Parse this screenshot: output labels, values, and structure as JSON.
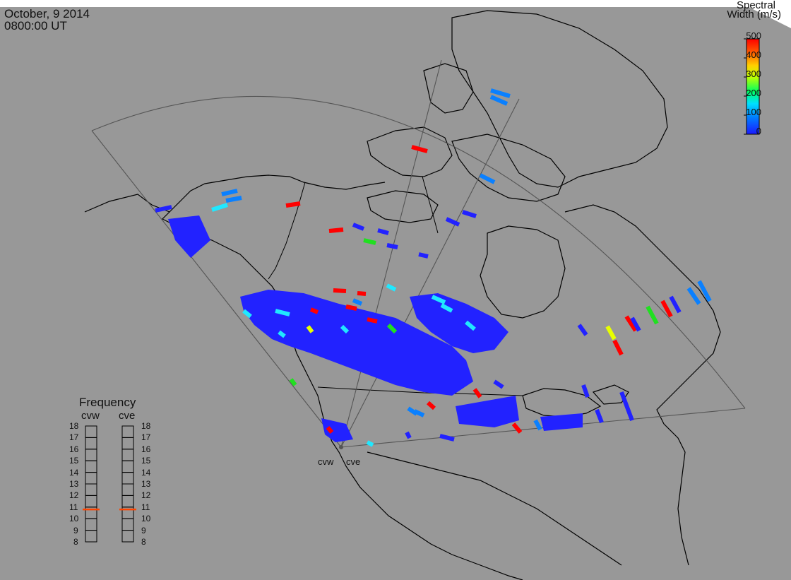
{
  "timestamp": {
    "date": "October, 9 2014",
    "time": "0800:00 UT"
  },
  "colorbar": {
    "title_line1": "Spectral",
    "title_line2": "Width (m/s)",
    "ticks": [
      "500",
      "400",
      "300",
      "200",
      "100",
      "0"
    ],
    "range": [
      0,
      500
    ],
    "colors": [
      "#1a1aff",
      "#0080ff",
      "#00e0ff",
      "#00ff60",
      "#ffff00",
      "#ff8000",
      "#ff0000"
    ]
  },
  "frequency_panel": {
    "title": "Frequency",
    "radars": [
      {
        "name": "cvw",
        "frequency_mhz": 10.8
      },
      {
        "name": "cve",
        "frequency_mhz": 10.8
      }
    ],
    "ticks": [
      "18",
      "17",
      "16",
      "15",
      "14",
      "13",
      "12",
      "11",
      "10",
      "9",
      "8"
    ],
    "marker_color": "#ff4400"
  },
  "sites": {
    "cvw": "cvw",
    "cve": "cve"
  },
  "colors": {
    "background": "#989898",
    "coastline": "#000000",
    "fov": "#444444",
    "scatter_main": "#2222ff"
  },
  "echo_values_ms": {
    "red": 480,
    "yellow": 330,
    "green": 230,
    "cyan": 130,
    "light_blue": 60,
    "blue": 10
  }
}
